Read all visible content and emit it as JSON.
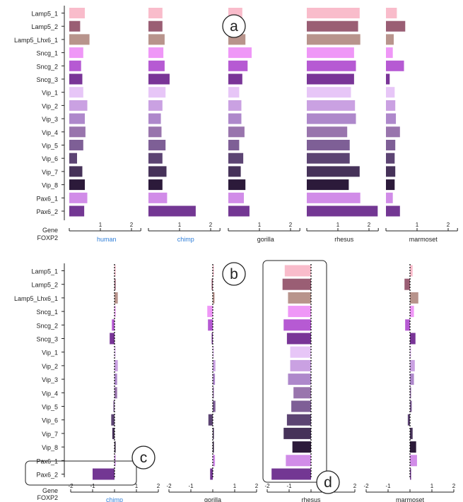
{
  "chart_data": [
    {
      "panel": "a",
      "type": "bar",
      "orientation": "horizontal",
      "ylabel": "Gene",
      "xlabel": "FOXP2",
      "categories": [
        "Lamp5_1",
        "Lamp5_2",
        "Lamp5_Lhx6_1",
        "Sncg_1",
        "Sncg_2",
        "Sncg_3",
        "Vip_1",
        "Vip_2",
        "Vip_3",
        "Vip_4",
        "Vip_5",
        "Vip_6",
        "Vip_7",
        "Vip_8",
        "Pax6_1",
        "Pax6_2"
      ],
      "colors": [
        "#f9bccb",
        "#9a5e74",
        "#b8948c",
        "#ef97f7",
        "#b65ad3",
        "#793597",
        "#e7c6f7",
        "#caa1e2",
        "#ae88cb",
        "#9975ad",
        "#7e5f96",
        "#5c4473",
        "#463259",
        "#2c1a3a",
        "#d18ce8",
        "#733793"
      ],
      "xlim": [
        0,
        2.4
      ],
      "xticks": [
        1,
        2
      ],
      "series": [
        {
          "name": "human",
          "name_color": "#2f7ed8",
          "values": [
            0.5,
            0.35,
            0.65,
            0.45,
            0.38,
            0.42,
            0.45,
            0.58,
            0.5,
            0.52,
            0.45,
            0.25,
            0.42,
            0.5,
            0.58,
            0.48
          ]
        },
        {
          "name": "chimp",
          "name_color": "#2f7ed8",
          "values": [
            0.45,
            0.45,
            0.52,
            0.48,
            0.52,
            0.68,
            0.55,
            0.45,
            0.4,
            0.42,
            0.55,
            0.45,
            0.58,
            0.45,
            0.6,
            1.52
          ]
        },
        {
          "name": "gorilla",
          "name_color": "#222222",
          "values": [
            0.45,
            0.45,
            0.55,
            0.75,
            0.62,
            0.45,
            0.35,
            0.42,
            0.42,
            0.52,
            0.35,
            0.48,
            0.4,
            0.55,
            0.5,
            0.68
          ]
        },
        {
          "name": "rhesus",
          "name_color": "#222222",
          "values": [
            1.7,
            1.65,
            1.72,
            1.52,
            1.58,
            1.52,
            1.42,
            1.55,
            1.58,
            1.3,
            1.38,
            1.38,
            1.7,
            1.35,
            1.72,
            2.28
          ]
        },
        {
          "name": "marmoset",
          "name_color": "#222222",
          "values": [
            0.35,
            0.62,
            0.25,
            0.22,
            0.58,
            0.12,
            0.28,
            0.3,
            0.32,
            0.45,
            0.3,
            0.28,
            0.3,
            0.28,
            0.22,
            0.45
          ]
        }
      ]
    },
    {
      "panel": "b",
      "type": "bar",
      "orientation": "horizontal",
      "ylabel": "Gene",
      "xlabel": "FOXP2",
      "categories": [
        "Lamp5_1",
        "Lamp5_2",
        "Lamp5_Lhx6_1",
        "Sncg_1",
        "Sncg_2",
        "Sncg_3",
        "Vip_1",
        "Vip_2",
        "Vip_3",
        "Vip_4",
        "Vip_5",
        "Vip_6",
        "Vip_7",
        "Vip_8",
        "Pax6_1",
        "Pax6_2"
      ],
      "xlim": [
        -2,
        2
      ],
      "xticks": [
        -2,
        -1,
        1,
        2
      ],
      "series": [
        {
          "name": "chimp",
          "name_color": "#2f7ed8",
          "values": [
            0.05,
            0.05,
            0.15,
            0.0,
            -0.12,
            -0.22,
            0.05,
            0.15,
            0.12,
            0.12,
            -0.05,
            -0.15,
            -0.1,
            0.03,
            0.0,
            -1.0
          ]
        },
        {
          "name": "gorilla",
          "name_color": "#222222",
          "values": [
            0.0,
            -0.05,
            0.08,
            -0.25,
            -0.22,
            -0.02,
            0.0,
            0.12,
            0.1,
            0.05,
            0.12,
            -0.2,
            0.05,
            0.02,
            0.1,
            -0.12
          ]
        },
        {
          "name": "rhesus",
          "name_color": "#222222",
          "values": [
            -1.2,
            -1.3,
            -1.05,
            -1.05,
            -1.25,
            -1.1,
            -0.95,
            -0.95,
            -1.05,
            -0.8,
            -0.9,
            -1.1,
            -1.25,
            -0.85,
            -1.15,
            -1.8
          ]
        },
        {
          "name": "marmoset",
          "name_color": "#222222",
          "values": [
            0.12,
            -0.25,
            0.38,
            0.18,
            -0.22,
            0.25,
            0.05,
            0.22,
            0.18,
            0.05,
            0.08,
            -0.1,
            0.12,
            0.28,
            0.32,
            0.05
          ]
        }
      ]
    }
  ],
  "annotations": [
    "a",
    "b",
    "c",
    "d"
  ]
}
